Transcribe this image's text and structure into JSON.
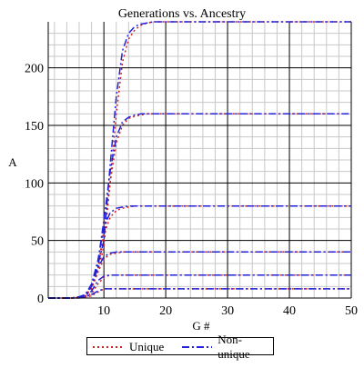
{
  "chart_data": {
    "type": "line",
    "title": "Generations vs. Ancestry",
    "xlabel": "G #",
    "ylabel": "A",
    "xlim": [
      1,
      50
    ],
    "ylim": [
      0,
      240
    ],
    "x_ticks": [
      10,
      20,
      30,
      40,
      50
    ],
    "y_ticks": [
      0,
      50,
      100,
      150,
      200
    ],
    "grid": true,
    "legend_position": "bottom",
    "colors": {
      "unique": "#cc2222",
      "non_unique": "#2222dd"
    },
    "x_samples": [
      1,
      2,
      3,
      4,
      5,
      6,
      7,
      8,
      9,
      10,
      11,
      12,
      13,
      14,
      15,
      16,
      17,
      18,
      19,
      20,
      21,
      22,
      23,
      24,
      25,
      26,
      27,
      28,
      29,
      30,
      31,
      32,
      33,
      34,
      35,
      36,
      37,
      38,
      39,
      40,
      41,
      42,
      43,
      44,
      45,
      46,
      47,
      48,
      49,
      50
    ],
    "series": [
      {
        "name": "Unique",
        "style": "dotted",
        "color": "#cc2222",
        "groups": [
          {
            "values": [
              0,
              0,
              0,
              0,
              0,
              0,
              0.5,
              2,
              5,
              8,
              8,
              8,
              8,
              8,
              8,
              8,
              8,
              8,
              8,
              8,
              8,
              8,
              8,
              8,
              8,
              8,
              8,
              8,
              8,
              8,
              8,
              8,
              8,
              8,
              8,
              8,
              8,
              8,
              8,
              8,
              8,
              8,
              8,
              8,
              8,
              8,
              8,
              8,
              8,
              8
            ]
          },
          {
            "values": [
              0,
              0,
              0,
              0,
              0,
              0.3,
              1,
              4,
              12,
              18,
              20,
              20,
              20,
              20,
              20,
              20,
              20,
              20,
              20,
              20,
              20,
              20,
              20,
              20,
              20,
              20,
              20,
              20,
              20,
              20,
              20,
              20,
              20,
              20,
              20,
              20,
              20,
              20,
              20,
              20,
              20,
              20,
              20,
              20,
              20,
              20,
              20,
              20,
              20,
              20
            ]
          },
          {
            "values": [
              0,
              0,
              0,
              0,
              0,
              0.5,
              2,
              8,
              22,
              34,
              38,
              39,
              40,
              40,
              40,
              40,
              40,
              40,
              40,
              40,
              40,
              40,
              40,
              40,
              40,
              40,
              40,
              40,
              40,
              40,
              40,
              40,
              40,
              40,
              40,
              40,
              40,
              40,
              40,
              40,
              40,
              40,
              40,
              40,
              40,
              40,
              40,
              40,
              40,
              40
            ]
          },
          {
            "values": [
              0,
              0,
              0,
              0,
              0,
              0.5,
              2,
              9,
              25,
              55,
              70,
              76,
              78,
              79,
              80,
              80,
              80,
              80,
              80,
              80,
              80,
              80,
              80,
              80,
              80,
              80,
              80,
              80,
              80,
              80,
              80,
              80,
              80,
              80,
              80,
              80,
              80,
              80,
              80,
              80,
              80,
              80,
              80,
              80,
              80,
              80,
              80,
              80,
              80,
              80
            ]
          },
          {
            "values": [
              0,
              0,
              0,
              0,
              0,
              0.5,
              2,
              9,
              24,
              60,
              100,
              135,
              150,
              156,
              158,
              159,
              160,
              160,
              160,
              160,
              160,
              160,
              160,
              160,
              160,
              160,
              160,
              160,
              160,
              160,
              160,
              160,
              160,
              160,
              160,
              160,
              160,
              160,
              160,
              160,
              160,
              160,
              160,
              160,
              160,
              160,
              160,
              160,
              160,
              160
            ]
          },
          {
            "values": [
              0,
              0,
              0,
              0,
              0,
              0.5,
              2,
              9,
              22,
              45,
              100,
              160,
              205,
              225,
              233,
              237,
              239,
              240,
              240,
              240,
              240,
              240,
              240,
              240,
              240,
              240,
              240,
              240,
              240,
              240,
              240,
              240,
              240,
              240,
              240,
              240,
              240,
              240,
              240,
              240,
              240,
              240,
              240,
              240,
              240,
              240,
              240,
              240,
              240,
              240
            ]
          }
        ]
      },
      {
        "name": "Non-unique",
        "style": "dashdot",
        "color": "#2222dd",
        "groups": [
          {
            "values": [
              0,
              0,
              0,
              0,
              0,
              0,
              1,
              3,
              6,
              8,
              8,
              8,
              8,
              8,
              8,
              8,
              8,
              8,
              8,
              8,
              8,
              8,
              8,
              8,
              8,
              8,
              8,
              8,
              8,
              8,
              8,
              8,
              8,
              8,
              8,
              8,
              8,
              8,
              8,
              8,
              8,
              8,
              8,
              8,
              8,
              8,
              8,
              8,
              8,
              8
            ]
          },
          {
            "values": [
              0,
              0,
              0,
              0,
              0,
              0.5,
              2,
              6,
              15,
              19,
              20,
              20,
              20,
              20,
              20,
              20,
              20,
              20,
              20,
              20,
              20,
              20,
              20,
              20,
              20,
              20,
              20,
              20,
              20,
              20,
              20,
              20,
              20,
              20,
              20,
              20,
              20,
              20,
              20,
              20,
              20,
              20,
              20,
              20,
              20,
              20,
              20,
              20,
              20,
              20
            ]
          },
          {
            "values": [
              0,
              0,
              0,
              0,
              0.2,
              1,
              3,
              10,
              26,
              36,
              39,
              40,
              40,
              40,
              40,
              40,
              40,
              40,
              40,
              40,
              40,
              40,
              40,
              40,
              40,
              40,
              40,
              40,
              40,
              40,
              40,
              40,
              40,
              40,
              40,
              40,
              40,
              40,
              40,
              40,
              40,
              40,
              40,
              40,
              40,
              40,
              40,
              40,
              40,
              40
            ]
          },
          {
            "values": [
              0,
              0,
              0,
              0,
              0.2,
              1,
              3,
              12,
              32,
              62,
              74,
              78,
              79,
              80,
              80,
              80,
              80,
              80,
              80,
              80,
              80,
              80,
              80,
              80,
              80,
              80,
              80,
              80,
              80,
              80,
              80,
              80,
              80,
              80,
              80,
              80,
              80,
              80,
              80,
              80,
              80,
              80,
              80,
              80,
              80,
              80,
              80,
              80,
              80,
              80
            ]
          },
          {
            "values": [
              0,
              0,
              0,
              0,
              0.2,
              1,
              3,
              12,
              30,
              68,
              110,
              140,
              153,
              157,
              159,
              160,
              160,
              160,
              160,
              160,
              160,
              160,
              160,
              160,
              160,
              160,
              160,
              160,
              160,
              160,
              160,
              160,
              160,
              160,
              160,
              160,
              160,
              160,
              160,
              160,
              160,
              160,
              160,
              160,
              160,
              160,
              160,
              160,
              160,
              160
            ]
          },
          {
            "values": [
              0,
              0,
              0,
              0,
              0.2,
              1,
              3,
              11,
              28,
              50,
              115,
              175,
              215,
              230,
              236,
              238,
              239,
              240,
              240,
              240,
              240,
              240,
              240,
              240,
              240,
              240,
              240,
              240,
              240,
              240,
              240,
              240,
              240,
              240,
              240,
              240,
              240,
              240,
              240,
              240,
              240,
              240,
              240,
              240,
              240,
              240,
              240,
              240,
              240,
              240
            ]
          }
        ]
      }
    ]
  }
}
